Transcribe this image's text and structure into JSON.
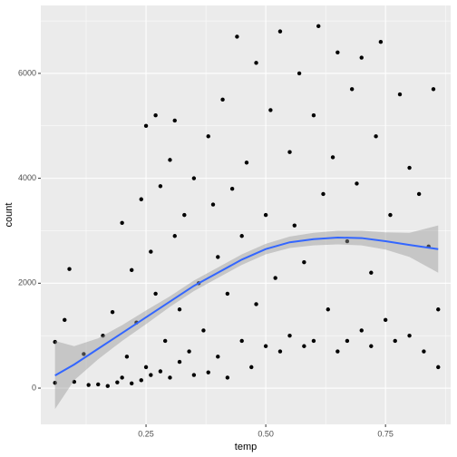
{
  "chart_data": {
    "type": "scatter",
    "x_label": "temp",
    "y_label": "count",
    "xlim": [
      0.0303,
      0.886
    ],
    "ylim": [
      -691,
      7295
    ],
    "xticks": [
      0.25,
      {
        "value": 0.5,
        "label": "0.50"
      },
      0.75
    ],
    "yticks": [
      0,
      2000,
      4000,
      6000
    ],
    "minor_xticks": [
      0.125,
      0.375,
      0.625,
      0.875
    ],
    "minor_yticks": [
      1000,
      3000,
      5000,
      7000
    ],
    "grid": true,
    "color": "#000000",
    "x": [
      0.06,
      0.06,
      0.08,
      0.09,
      0.1,
      0.12,
      0.13,
      0.15,
      0.16,
      0.17,
      0.18,
      0.19,
      0.2,
      0.2,
      0.21,
      0.22,
      0.22,
      0.23,
      0.24,
      0.24,
      0.25,
      0.25,
      0.26,
      0.26,
      0.27,
      0.27,
      0.28,
      0.28,
      0.29,
      0.3,
      0.3,
      0.31,
      0.31,
      0.32,
      0.32,
      0.33,
      0.34,
      0.35,
      0.35,
      0.36,
      0.37,
      0.38,
      0.38,
      0.39,
      0.4,
      0.4,
      0.41,
      0.42,
      0.42,
      0.43,
      0.44,
      0.45,
      0.45,
      0.46,
      0.47,
      0.48,
      0.48,
      0.5,
      0.5,
      0.51,
      0.52,
      0.53,
      0.53,
      0.55,
      0.55,
      0.56,
      0.57,
      0.58,
      0.58,
      0.6,
      0.6,
      0.61,
      0.62,
      0.63,
      0.64,
      0.65,
      0.65,
      0.67,
      0.67,
      0.68,
      0.69,
      0.7,
      0.7,
      0.72,
      0.72,
      0.73,
      0.74,
      0.75,
      0.76,
      0.77,
      0.78,
      0.8,
      0.8,
      0.82,
      0.83,
      0.84,
      0.85,
      0.86,
      0.86
    ],
    "y": [
      880,
      100,
      1300,
      2270,
      120,
      650,
      60,
      70,
      1000,
      40,
      1450,
      110,
      3150,
      200,
      600,
      2250,
      90,
      1250,
      3600,
      150,
      5000,
      400,
      2600,
      250,
      1800,
      5200,
      3850,
      320,
      900,
      4350,
      200,
      2900,
      5100,
      1500,
      500,
      3300,
      700,
      4000,
      250,
      2000,
      1100,
      4800,
      300,
      3500,
      2500,
      600,
      5500,
      1800,
      200,
      3800,
      6700,
      900,
      2900,
      4300,
      400,
      6200,
      1600,
      3300,
      800,
      5300,
      2100,
      6800,
      700,
      4500,
      1000,
      3100,
      6000,
      800,
      2400,
      5200,
      900,
      6900,
      3700,
      1500,
      4400,
      700,
      6400,
      2800,
      900,
      5700,
      3900,
      1100,
      6300,
      2200,
      800,
      4800,
      6600,
      1300,
      3300,
      900,
      5600,
      4200,
      1000,
      3700,
      700,
      2700,
      5700,
      1500,
      400
    ],
    "smooth": {
      "color": "#3366ff",
      "band_color": "#999999",
      "x": [
        0.06,
        0.1,
        0.15,
        0.2,
        0.25,
        0.3,
        0.35,
        0.4,
        0.45,
        0.5,
        0.55,
        0.6,
        0.65,
        0.7,
        0.75,
        0.8,
        0.86
      ],
      "values": [
        240,
        450,
        750,
        1050,
        1350,
        1650,
        1950,
        2200,
        2450,
        2650,
        2780,
        2840,
        2870,
        2860,
        2800,
        2730,
        2650
      ],
      "lower": [
        -400,
        150,
        550,
        900,
        1220,
        1550,
        1850,
        2100,
        2350,
        2550,
        2670,
        2720,
        2740,
        2720,
        2640,
        2500,
        2200
      ],
      "upper": [
        900,
        800,
        950,
        1200,
        1480,
        1750,
        2050,
        2300,
        2550,
        2750,
        2890,
        2960,
        3000,
        3000,
        2970,
        2960,
        3100
      ]
    }
  }
}
